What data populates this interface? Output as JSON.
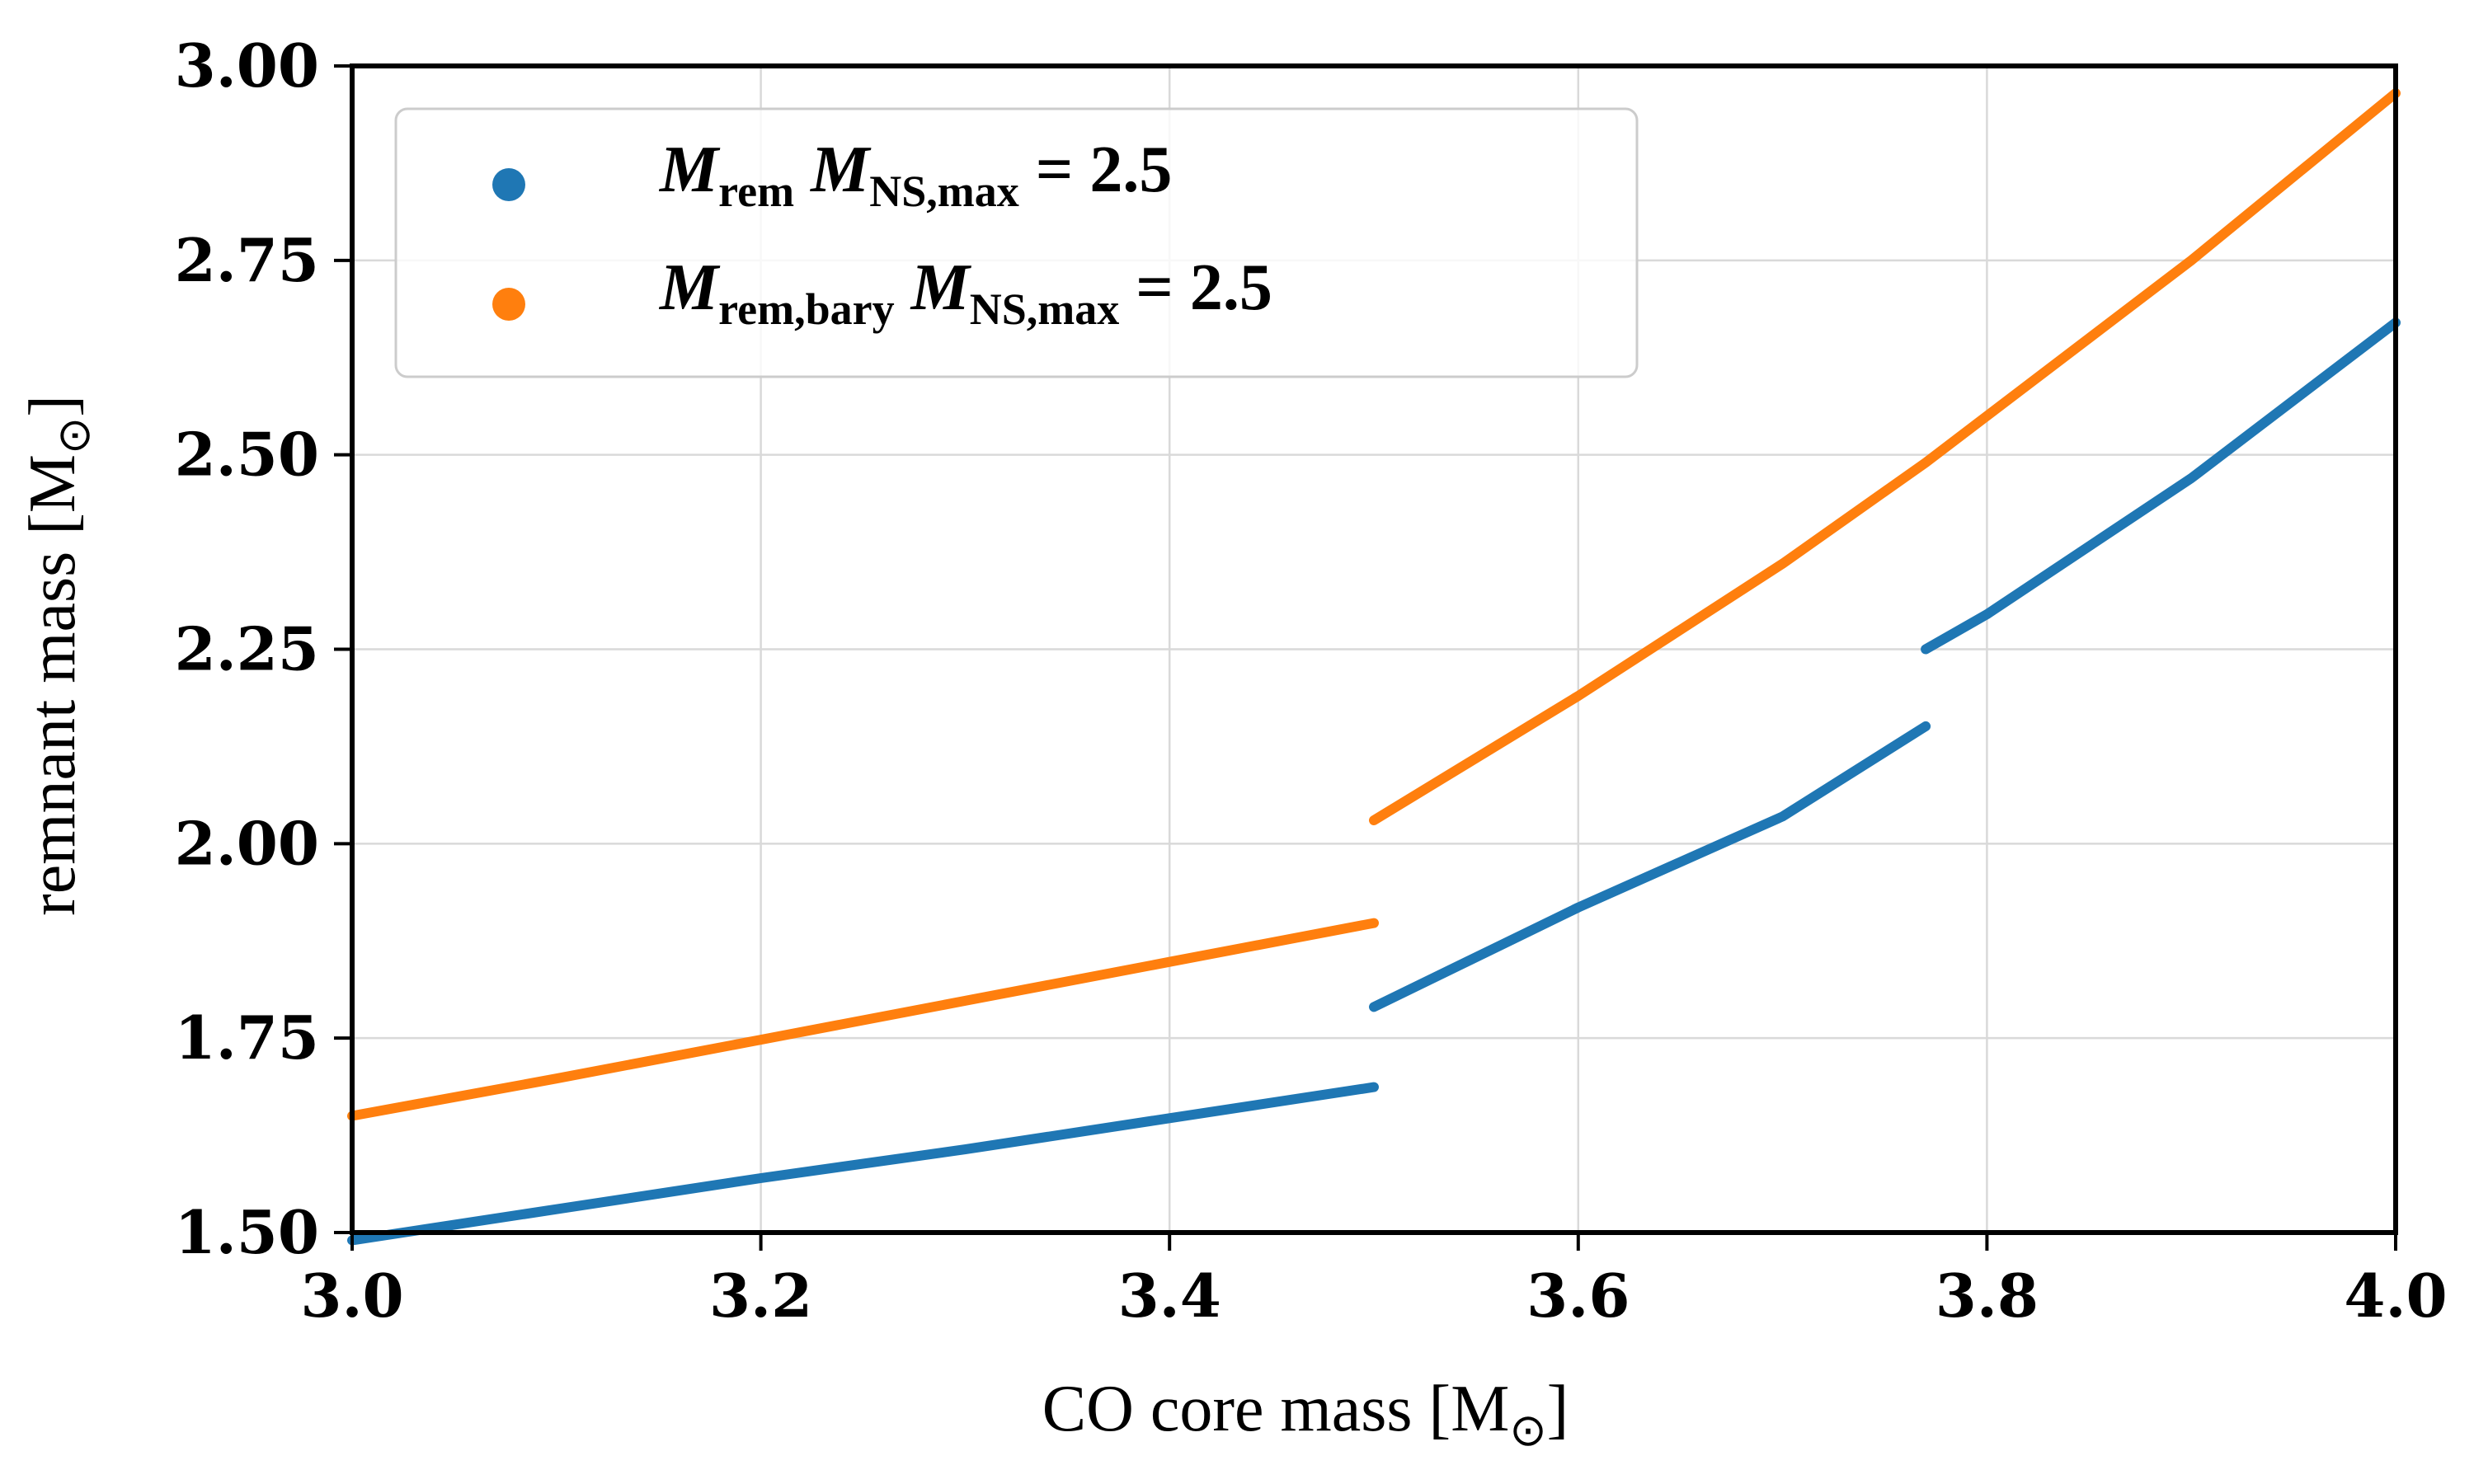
{
  "chart_data": {
    "type": "line",
    "xlabel": "CO core mass [M",
    "xlabel_sub": "⊙",
    "xlabel_end": "]",
    "ylabel": "remnant mass [M",
    "ylabel_sub": "⊙",
    "ylabel_end": "]",
    "xlim": [
      3.0,
      4.0
    ],
    "ylim": [
      1.5,
      3.0
    ],
    "xticks": [
      3.0,
      3.2,
      3.4,
      3.6,
      3.8,
      4.0
    ],
    "xtick_labels": [
      "3.0",
      "3.2",
      "3.4",
      "3.6",
      "3.8",
      "4.0"
    ],
    "yticks": [
      1.5,
      1.75,
      2.0,
      2.25,
      2.5,
      2.75,
      3.0
    ],
    "ytick_labels": [
      "1.50",
      "1.75",
      "2.00",
      "2.25",
      "2.50",
      "2.75",
      "3.00"
    ],
    "grid": true,
    "legend_position": "top-left",
    "series": [
      {
        "name_main": "M",
        "name_sub": "rem",
        "name_mid": " M",
        "name_sub2": "NS,max",
        "name_tail": " = 2.5",
        "color": "#1f77b4",
        "segments": [
          [
            [
              3.0,
              1.49
            ],
            [
              3.1,
              1.53
            ],
            [
              3.2,
              1.57
            ],
            [
              3.3,
              1.607
            ],
            [
              3.4,
              1.647
            ],
            [
              3.5,
              1.687
            ]
          ],
          [
            [
              3.5,
              1.79
            ],
            [
              3.6,
              1.918
            ],
            [
              3.7,
              2.035
            ],
            [
              3.77,
              2.151
            ]
          ],
          [
            [
              3.77,
              2.25
            ],
            [
              3.8,
              2.295
            ],
            [
              3.9,
              2.47
            ],
            [
              4.0,
              2.67
            ]
          ]
        ]
      },
      {
        "name_main": "M",
        "name_sub": "rem,bary",
        "name_mid": " M",
        "name_sub2": "NS,max",
        "name_tail": " = 2.5",
        "color": "#ff7f0e",
        "segments": [
          [
            [
              3.0,
              1.65
            ],
            [
              3.1,
              1.698
            ],
            [
              3.2,
              1.748
            ],
            [
              3.3,
              1.798
            ],
            [
              3.4,
              1.848
            ],
            [
              3.5,
              1.898
            ]
          ],
          [
            [
              3.5,
              2.03
            ],
            [
              3.6,
              2.19
            ],
            [
              3.7,
              2.36
            ],
            [
              3.77,
              2.49
            ],
            [
              3.8,
              2.55
            ],
            [
              3.9,
              2.75
            ],
            [
              4.0,
              2.965
            ]
          ]
        ]
      }
    ]
  }
}
